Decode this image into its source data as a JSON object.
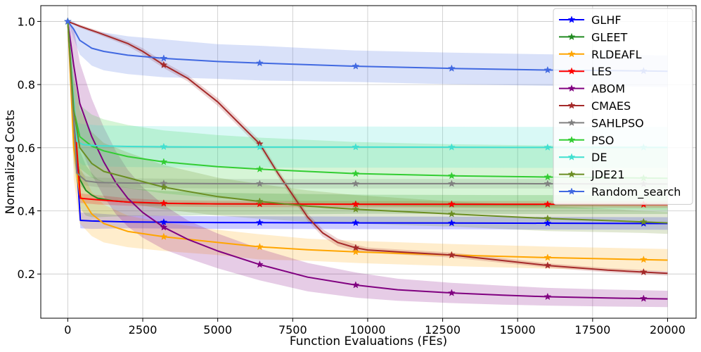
{
  "chart_data": {
    "type": "line",
    "xlabel": "Function Evaluations (FEs)",
    "ylabel": "Normalized Costs",
    "xlim": [
      -900,
      20950
    ],
    "ylim": [
      0.06,
      1.05
    ],
    "xticks": [
      0,
      2500,
      5000,
      7500,
      10000,
      12500,
      15000,
      17500,
      20000
    ],
    "yticks": [
      0.2,
      0.4,
      0.6,
      0.8,
      1.0
    ],
    "xtick_labels": [
      "0",
      "2500",
      "5000",
      "7500",
      "10000",
      "12500",
      "15000",
      "17500",
      "20000"
    ],
    "ytick_labels": [
      "0.2",
      "0.4",
      "0.6",
      "0.8",
      "1.0"
    ],
    "grid": true,
    "legend_position": "upper-right",
    "marker_x": [
      0,
      3200,
      6400,
      9600,
      12800,
      16000,
      19200
    ],
    "series": [
      {
        "name": "GLHF",
        "color": "#0000ff",
        "x": [
          0,
          420,
          800,
          2000,
          5000,
          10000,
          15000,
          20000
        ],
        "y": [
          1.0,
          0.37,
          0.368,
          0.365,
          0.363,
          0.362,
          0.361,
          0.36
        ],
        "band": [
          0,
          0.025,
          0.025,
          0.02,
          0.02,
          0.02,
          0.02,
          0.02
        ]
      },
      {
        "name": "GLEET",
        "color": "#228b22",
        "x": [
          0,
          200,
          400,
          600,
          800,
          1000,
          1500,
          2000,
          3000,
          5000,
          10000,
          15000,
          20000
        ],
        "y": [
          1.0,
          0.65,
          0.5,
          0.465,
          0.45,
          0.44,
          0.432,
          0.428,
          0.424,
          0.422,
          0.421,
          0.42,
          0.42
        ],
        "band": [
          0,
          0.1,
          0.09,
          0.08,
          0.07,
          0.06,
          0.05,
          0.045,
          0.04,
          0.035,
          0.03,
          0.03,
          0.03
        ]
      },
      {
        "name": "RLDEAFL",
        "color": "#ffa500",
        "x": [
          0,
          200,
          400,
          800,
          1200,
          2000,
          3200,
          5000,
          6400,
          8000,
          9600,
          12800,
          16000,
          20000
        ],
        "y": [
          1.0,
          0.6,
          0.45,
          0.39,
          0.36,
          0.335,
          0.318,
          0.3,
          0.286,
          0.277,
          0.27,
          0.26,
          0.252,
          0.244
        ],
        "band": [
          0,
          0.1,
          0.09,
          0.07,
          0.06,
          0.05,
          0.045,
          0.04,
          0.04,
          0.035,
          0.035,
          0.035,
          0.035,
          0.035
        ]
      },
      {
        "name": "LES",
        "color": "#ff0000",
        "x": [
          0,
          420,
          1000,
          2000,
          3200,
          5000,
          10000,
          15000,
          20000
        ],
        "y": [
          1.0,
          0.44,
          0.435,
          0.428,
          0.424,
          0.422,
          0.421,
          0.421,
          0.42
        ],
        "band": [
          0,
          0.015,
          0.015,
          0.012,
          0.01,
          0.01,
          0.01,
          0.01,
          0.01
        ]
      },
      {
        "name": "ABOM",
        "color": "#800080",
        "x": [
          0,
          200,
          400,
          800,
          1200,
          1600,
          2000,
          2500,
          3200,
          4000,
          5000,
          6400,
          8000,
          9600,
          11000,
          12800,
          14500,
          16000,
          18000,
          20000
        ],
        "y": [
          1.0,
          0.86,
          0.74,
          0.635,
          0.555,
          0.49,
          0.44,
          0.395,
          0.348,
          0.31,
          0.273,
          0.23,
          0.19,
          0.165,
          0.15,
          0.14,
          0.133,
          0.128,
          0.124,
          0.121
        ],
        "band": [
          0,
          0.12,
          0.13,
          0.12,
          0.11,
          0.1,
          0.09,
          0.08,
          0.07,
          0.06,
          0.055,
          0.05,
          0.045,
          0.04,
          0.035,
          0.032,
          0.03,
          0.028,
          0.027,
          0.026
        ]
      },
      {
        "name": "CMAES",
        "color": "#a52a2a",
        "x": [
          0,
          400,
          1000,
          2000,
          2500,
          3200,
          4000,
          5000,
          6000,
          6400,
          7000,
          7500,
          8000,
          8500,
          9000,
          9600,
          10000,
          11000,
          12800,
          14000,
          16000,
          18000,
          20000
        ],
        "y": [
          1.0,
          0.985,
          0.965,
          0.93,
          0.905,
          0.862,
          0.82,
          0.745,
          0.65,
          0.612,
          0.52,
          0.45,
          0.38,
          0.33,
          0.3,
          0.283,
          0.276,
          0.27,
          0.26,
          0.248,
          0.227,
          0.212,
          0.202
        ],
        "band": [
          0,
          0.005,
          0.006,
          0.008,
          0.01,
          0.01,
          0.01,
          0.012,
          0.012,
          0.012,
          0.012,
          0.012,
          0.012,
          0.012,
          0.012,
          0.01,
          0.008,
          0.008,
          0.008,
          0.008,
          0.007,
          0.007,
          0.007
        ]
      },
      {
        "name": "SAHLPSO",
        "color": "#808080",
        "x": [
          0,
          300,
          600,
          1000,
          2000,
          3200,
          5000,
          10000,
          15000,
          20000
        ],
        "y": [
          1.0,
          0.52,
          0.495,
          0.49,
          0.488,
          0.487,
          0.486,
          0.486,
          0.486,
          0.485
        ],
        "band": [
          0,
          0.02,
          0.015,
          0.015,
          0.015,
          0.015,
          0.015,
          0.015,
          0.015,
          0.015
        ]
      },
      {
        "name": "PSO",
        "color": "#32cd32",
        "x": [
          0,
          200,
          400,
          800,
          1200,
          2000,
          3200,
          5000,
          6400,
          8000,
          9600,
          12800,
          16000,
          20000
        ],
        "y": [
          1.0,
          0.72,
          0.635,
          0.605,
          0.59,
          0.572,
          0.555,
          0.54,
          0.532,
          0.525,
          0.518,
          0.511,
          0.507,
          0.503
        ],
        "band": [
          0,
          0.1,
          0.1,
          0.1,
          0.1,
          0.1,
          0.1,
          0.1,
          0.1,
          0.1,
          0.1,
          0.1,
          0.1,
          0.1
        ]
      },
      {
        "name": "DE",
        "color": "#40e0d0",
        "x": [
          0,
          300,
          500,
          1000,
          2000,
          3200,
          5000,
          10000,
          15000,
          20000
        ],
        "y": [
          1.0,
          0.62,
          0.61,
          0.606,
          0.604,
          0.603,
          0.602,
          0.602,
          0.601,
          0.601
        ],
        "band": [
          0,
          0.06,
          0.065,
          0.065,
          0.065,
          0.065,
          0.065,
          0.065,
          0.065,
          0.065
        ]
      },
      {
        "name": "JDE21",
        "color": "#6b8e23",
        "x": [
          0,
          200,
          400,
          800,
          1200,
          2000,
          3200,
          5000,
          6400,
          8000,
          9600,
          12800,
          16000,
          19200,
          20000
        ],
        "y": [
          1.0,
          0.72,
          0.6,
          0.55,
          0.525,
          0.505,
          0.475,
          0.445,
          0.43,
          0.415,
          0.405,
          0.39,
          0.376,
          0.365,
          0.362
        ],
        "band": [
          0,
          0.12,
          0.12,
          0.1,
          0.09,
          0.08,
          0.07,
          0.06,
          0.055,
          0.05,
          0.045,
          0.04,
          0.04,
          0.035,
          0.035
        ]
      },
      {
        "name": "Random_search",
        "color": "#4169e1",
        "x": [
          0,
          200,
          400,
          800,
          1200,
          2000,
          3200,
          5000,
          6400,
          9600,
          12800,
          16000,
          19200,
          20000
        ],
        "y": [
          1.0,
          0.975,
          0.94,
          0.915,
          0.905,
          0.893,
          0.883,
          0.873,
          0.868,
          0.858,
          0.851,
          0.846,
          0.843,
          0.842
        ],
        "band": [
          0,
          0.03,
          0.045,
          0.055,
          0.06,
          0.06,
          0.06,
          0.055,
          0.055,
          0.05,
          0.05,
          0.05,
          0.05,
          0.05
        ]
      }
    ]
  }
}
